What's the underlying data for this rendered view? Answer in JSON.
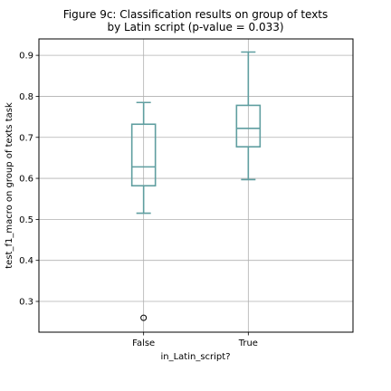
{
  "chart_data": {
    "type": "box",
    "title_line1": "Figure 9c: Classification results on group of texts",
    "title_line2": "by Latin script (p-value = 0.033)",
    "xlabel": "in_Latin_script?",
    "ylabel": "test_f1_macro on group of texts task",
    "ylim": [
      0.225,
      0.94
    ],
    "yticks": [
      "0.3",
      "0.4",
      "0.5",
      "0.6",
      "0.7",
      "0.8",
      "0.9"
    ],
    "categories": [
      "False",
      "True"
    ],
    "boxes": [
      {
        "category": "False",
        "whisker_low": 0.515,
        "q1": 0.582,
        "median": 0.628,
        "q3": 0.732,
        "whisker_high": 0.785,
        "outliers": [
          0.26
        ]
      },
      {
        "category": "True",
        "whisker_low": 0.597,
        "q1": 0.677,
        "median": 0.722,
        "q3": 0.778,
        "whisker_high": 0.908,
        "outliers": []
      }
    ],
    "grid": true,
    "box_color": "#5f9ea0",
    "outlier_color": "#000000"
  }
}
